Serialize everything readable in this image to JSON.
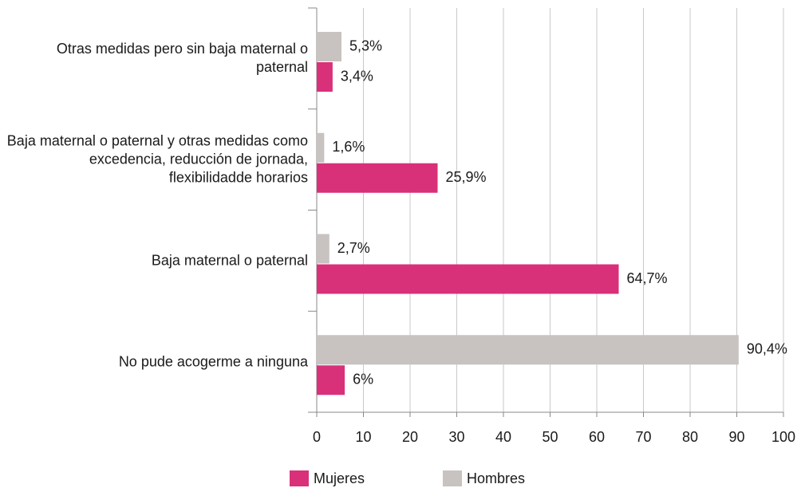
{
  "chart_data": {
    "type": "barh",
    "categories": [
      "Otras medidas pero sin baja maternal o paternal",
      "Baja maternal o paternal y otras medidas como excedencia, reducción de jornada, flexibilidadde horarios",
      "Baja maternal o paternal",
      "No pude acogerme a ninguna"
    ],
    "series": [
      {
        "name": "Hombres",
        "color": "#c8c3c0",
        "values": [
          5.3,
          1.6,
          2.7,
          90.4
        ],
        "value_labels": [
          "5,3%",
          "1,6%",
          "2,7%",
          "90,4%"
        ]
      },
      {
        "name": "Mujeres",
        "color": "#d9307a",
        "values": [
          3.4,
          25.9,
          64.7,
          6
        ],
        "value_labels": [
          "3,4%",
          "25,9%",
          "64,7%",
          "6%"
        ]
      }
    ],
    "xlim": [
      0,
      100
    ],
    "xticks": [
      0,
      10,
      20,
      30,
      40,
      50,
      60,
      70,
      80,
      90,
      100
    ],
    "grid": true,
    "legend_order": [
      "Mujeres",
      "Hombres"
    ]
  }
}
